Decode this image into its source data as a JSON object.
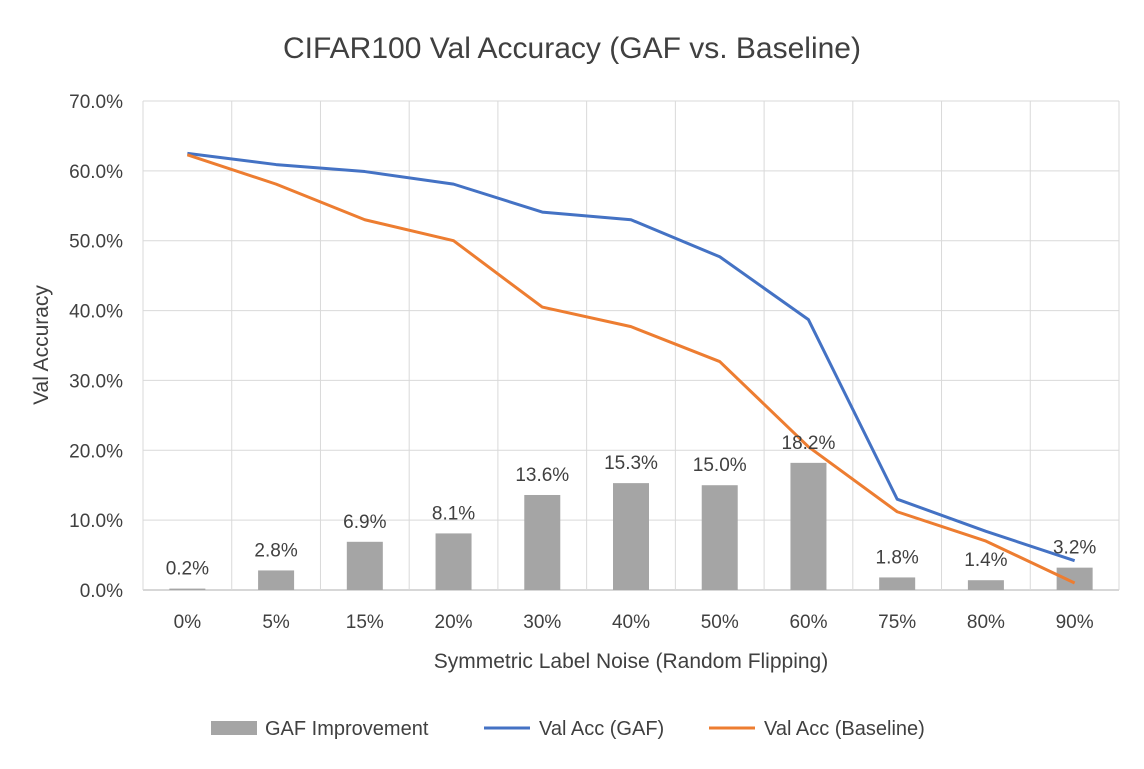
{
  "chart_data": {
    "type": "bar",
    "title": "CIFAR100 Val Accuracy (GAF  vs. Baseline)",
    "xlabel": "Symmetric Label Noise (Random Flipping)",
    "ylabel": "Val Accuracy",
    "categories": [
      "0%",
      "5%",
      "15%",
      "20%",
      "30%",
      "40%",
      "50%",
      "60%",
      "75%",
      "80%",
      "90%"
    ],
    "ylim": [
      0,
      70
    ],
    "yticks": [
      0,
      10,
      20,
      30,
      40,
      50,
      60,
      70
    ],
    "ytick_labels": [
      "0.0%",
      "10.0%",
      "20.0%",
      "30.0%",
      "40.0%",
      "50.0%",
      "60.0%",
      "70.0%"
    ],
    "grid": true,
    "legend_position": "bottom",
    "series": [
      {
        "name": "GAF Improvement",
        "type": "bar",
        "color": "#a5a5a5",
        "values": [
          0.2,
          2.8,
          6.9,
          8.1,
          13.6,
          15.3,
          15.0,
          18.2,
          1.8,
          1.4,
          3.2
        ],
        "labels": [
          "0.2%",
          "2.8%",
          "6.9%",
          "8.1%",
          "13.6%",
          "15.3%",
          "15.0%",
          "18.2%",
          "1.8%",
          "1.4%",
          "3.2%"
        ]
      },
      {
        "name": "Val Acc (GAF)",
        "type": "line",
        "color": "#4472c4",
        "values": [
          62.5,
          60.9,
          59.9,
          58.1,
          54.1,
          53.0,
          47.7,
          38.7,
          13.0,
          8.4,
          4.2
        ]
      },
      {
        "name": "Val Acc (Baseline)",
        "type": "line",
        "color": "#ed7d31",
        "values": [
          62.3,
          58.1,
          53.0,
          50.0,
          40.5,
          37.7,
          32.7,
          20.5,
          11.2,
          7.0,
          1.0
        ]
      }
    ]
  }
}
